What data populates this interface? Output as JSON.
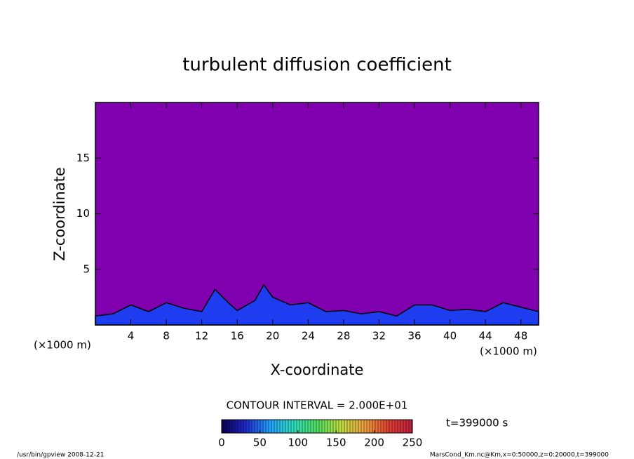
{
  "chart_data": {
    "type": "contour",
    "title": "turbulent diffusion coefficient",
    "x_label": "X-coordinate",
    "y_label": "Z-coordinate",
    "x_unit": "(×1000 m)",
    "y_unit": "(×1000 m)",
    "xlim": [
      0,
      50
    ],
    "xticks": [
      4,
      8,
      12,
      16,
      20,
      24,
      28,
      32,
      36,
      40,
      44,
      48
    ],
    "ylim": [
      0,
      20
    ],
    "yticks": [
      5,
      10,
      15
    ],
    "background_color": "#8000b0",
    "layer_color": "#1e3cf0",
    "line_color": "#000000",
    "x": [
      0,
      2,
      4,
      6,
      8,
      10,
      12,
      13.5,
      15,
      16,
      18,
      19,
      20,
      22,
      24,
      26,
      28,
      30,
      32,
      34,
      36,
      38,
      40,
      42,
      44,
      46,
      48,
      50
    ],
    "values": [
      0.8,
      1.0,
      1.8,
      1.2,
      2.0,
      1.5,
      1.2,
      3.2,
      2.0,
      1.3,
      2.2,
      3.6,
      2.5,
      1.8,
      2.0,
      1.2,
      1.3,
      1.0,
      1.2,
      0.8,
      1.8,
      1.8,
      1.3,
      1.4,
      1.2,
      2.0,
      1.6,
      1.2
    ],
    "contour_interval": "CONTOUR INTERVAL = 2.000E+01",
    "time_label": "t=399000 s",
    "colorbar": {
      "lim": [
        0,
        250
      ],
      "ticks": [
        0,
        50,
        100,
        150,
        200,
        250
      ],
      "colors": [
        "#0a0050",
        "#1e28d0",
        "#20a0ff",
        "#30e0c0",
        "#50e060",
        "#c0e040",
        "#f0a040",
        "#e04030",
        "#c02040"
      ]
    },
    "footer_left": "/usr/bin/gpview  2008-12-21",
    "footer_right": "MarsCond_Km.nc@Km,x=0:50000,z=0:20000,t=399000"
  }
}
